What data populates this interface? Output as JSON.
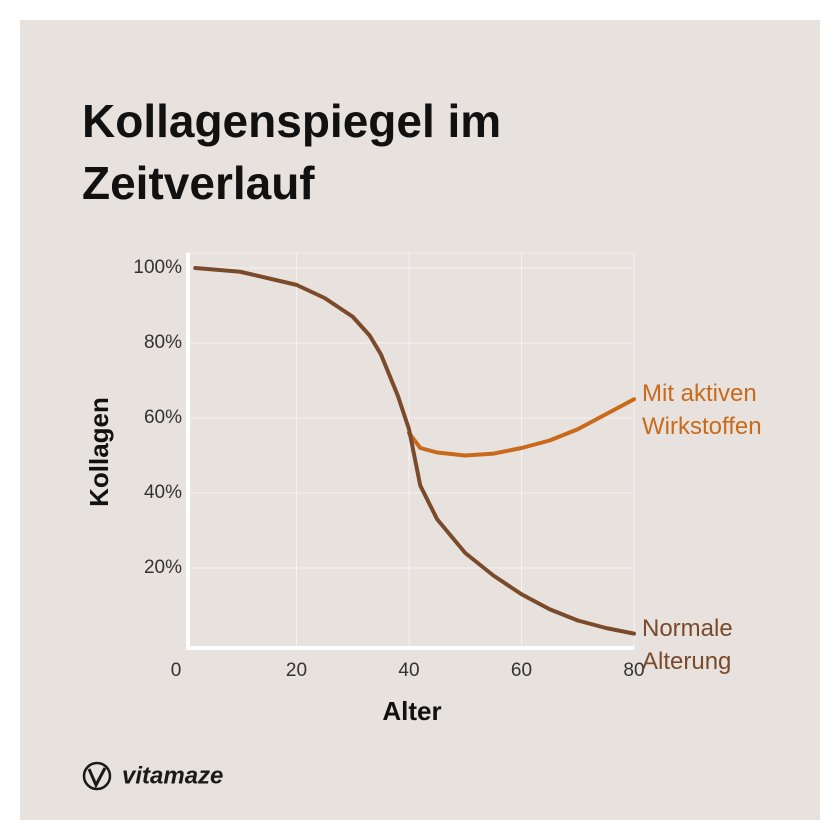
{
  "chart_data": {
    "type": "line",
    "title": "Kollagenspiegel im Zeitverlauf",
    "xlabel": "Alter",
    "ylabel": "Kollagen",
    "brand": "vitamaze",
    "xlim": [
      0,
      80
    ],
    "xticks": [
      0,
      20,
      40,
      60,
      80
    ],
    "ylim": [
      0,
      100
    ],
    "yticks": [
      {
        "value": 20,
        "label": "20%"
      },
      {
        "value": 40,
        "label": "40%"
      },
      {
        "value": 60,
        "label": "60%"
      },
      {
        "value": 80,
        "label": "80%"
      },
      {
        "value": 100,
        "label": "100%"
      }
    ],
    "grid": true,
    "series": [
      {
        "name": "Mit aktiven Wirkstoffen",
        "color": "#c96a1b",
        "x": [
          40,
          42,
          45,
          50,
          55,
          60,
          65,
          70,
          75,
          80
        ],
        "values": [
          56,
          52,
          50.8,
          50,
          50.5,
          52,
          54,
          57,
          61,
          65
        ]
      },
      {
        "name": "Normale Alterung",
        "color": "#7a4a2a",
        "x": [
          2,
          10,
          20,
          25,
          30,
          33,
          35,
          38,
          40,
          42,
          45,
          50,
          55,
          60,
          65,
          70,
          75,
          80
        ],
        "values": [
          100,
          99,
          95.5,
          92,
          87,
          82,
          77,
          66,
          57,
          42,
          33,
          24,
          18,
          13,
          9,
          6,
          4,
          2.5
        ]
      }
    ]
  }
}
